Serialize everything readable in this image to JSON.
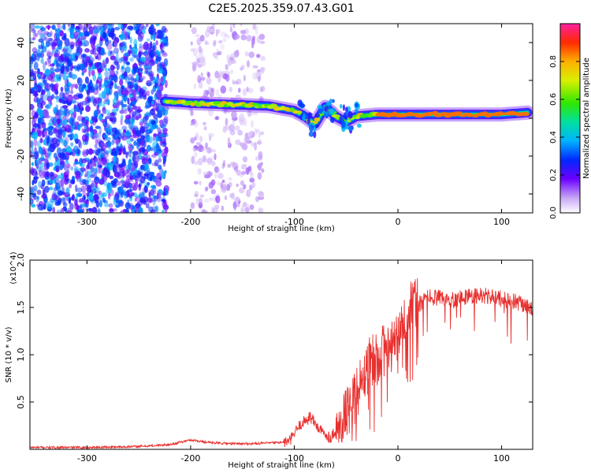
{
  "page": {
    "title": "C2E5.2025.359.07.43.G01"
  },
  "chart_data": [
    {
      "type": "heatmap",
      "xlabel": "Height of straight line (km)",
      "ylabel": "Frequency (Hz)",
      "xlim": [
        -355,
        130
      ],
      "ylim": [
        -50,
        50
      ],
      "x_ticks": [
        {
          "value": -300,
          "label": "-300"
        },
        {
          "value": -200,
          "label": "-200"
        },
        {
          "value": -100,
          "label": "-100"
        },
        {
          "value": 0,
          "label": "0"
        },
        {
          "value": 100,
          "label": "100"
        }
      ],
      "y_ticks": [
        {
          "value": -40,
          "label": "-40"
        },
        {
          "value": -20,
          "label": "-20"
        },
        {
          "value": 0,
          "label": "0"
        },
        {
          "value": 20,
          "label": "20"
        },
        {
          "value": 40,
          "label": "40"
        }
      ],
      "colorbar": {
        "label": "Normalized spectral amplitude",
        "range": [
          0,
          1
        ],
        "colormap": "rainbow",
        "ticks": [
          {
            "value": 0.0,
            "label": "0.0"
          },
          {
            "value": 0.2,
            "label": "0.2"
          },
          {
            "value": 0.4,
            "label": "0.4"
          },
          {
            "value": 0.6,
            "label": "0.6"
          },
          {
            "value": 0.8,
            "label": "0.8"
          }
        ]
      },
      "ridge": {
        "x": [
          -225,
          -200,
          -175,
          -150,
          -125,
          -100,
          -90,
          -80,
          -70,
          -60,
          -50,
          -40,
          -20,
          0,
          25,
          50,
          75,
          100,
          125
        ],
        "y": [
          9,
          8,
          7.5,
          7,
          6.5,
          4,
          1,
          -3,
          6,
          1,
          -2,
          1,
          2,
          2,
          2,
          2,
          2,
          2,
          3
        ]
      },
      "noise_regions": [
        {
          "x_range": [
            -355,
            -223
          ],
          "level": 0.25
        },
        {
          "x_range": [
            -200,
            -130
          ],
          "level": 0.08
        }
      ]
    },
    {
      "type": "line",
      "xlabel": "Height of straight line (km)",
      "ylabel": "SNR (10 * v/v)",
      "scale_label": "(x10^4)",
      "xlim": [
        -355,
        130
      ],
      "ylim": [
        0,
        2.0
      ],
      "x_ticks": [
        {
          "value": -300,
          "label": "-300"
        },
        {
          "value": -200,
          "label": "-200"
        },
        {
          "value": -100,
          "label": "-100"
        },
        {
          "value": 0,
          "label": "0"
        },
        {
          "value": 100,
          "label": "100"
        }
      ],
      "y_ticks": [
        {
          "value": 0.5,
          "label": "0.5"
        },
        {
          "value": 1.0,
          "label": "1.0"
        },
        {
          "value": 1.5,
          "label": "1.5"
        },
        {
          "value": 2.0,
          "label": "2.0"
        }
      ],
      "series": [
        {
          "color": "#e8302e",
          "x": [
            -355,
            -300,
            -250,
            -220,
            -200,
            -180,
            -160,
            -140,
            -120,
            -105,
            -95,
            -85,
            -75,
            -65,
            -55,
            -45,
            -35,
            -25,
            -15,
            -5,
            5,
            12,
            20,
            30,
            45,
            60,
            75,
            85,
            95,
            105,
            115,
            125,
            130
          ],
          "y": [
            0.02,
            0.02,
            0.03,
            0.05,
            0.1,
            0.07,
            0.06,
            0.06,
            0.07,
            0.08,
            0.25,
            0.35,
            0.2,
            0.12,
            0.3,
            0.45,
            0.75,
            0.95,
            1.05,
            1.1,
            1.35,
            1.55,
            1.52,
            1.62,
            1.58,
            1.6,
            1.63,
            1.62,
            1.6,
            1.58,
            1.55,
            1.5,
            1.48
          ]
        }
      ]
    }
  ]
}
